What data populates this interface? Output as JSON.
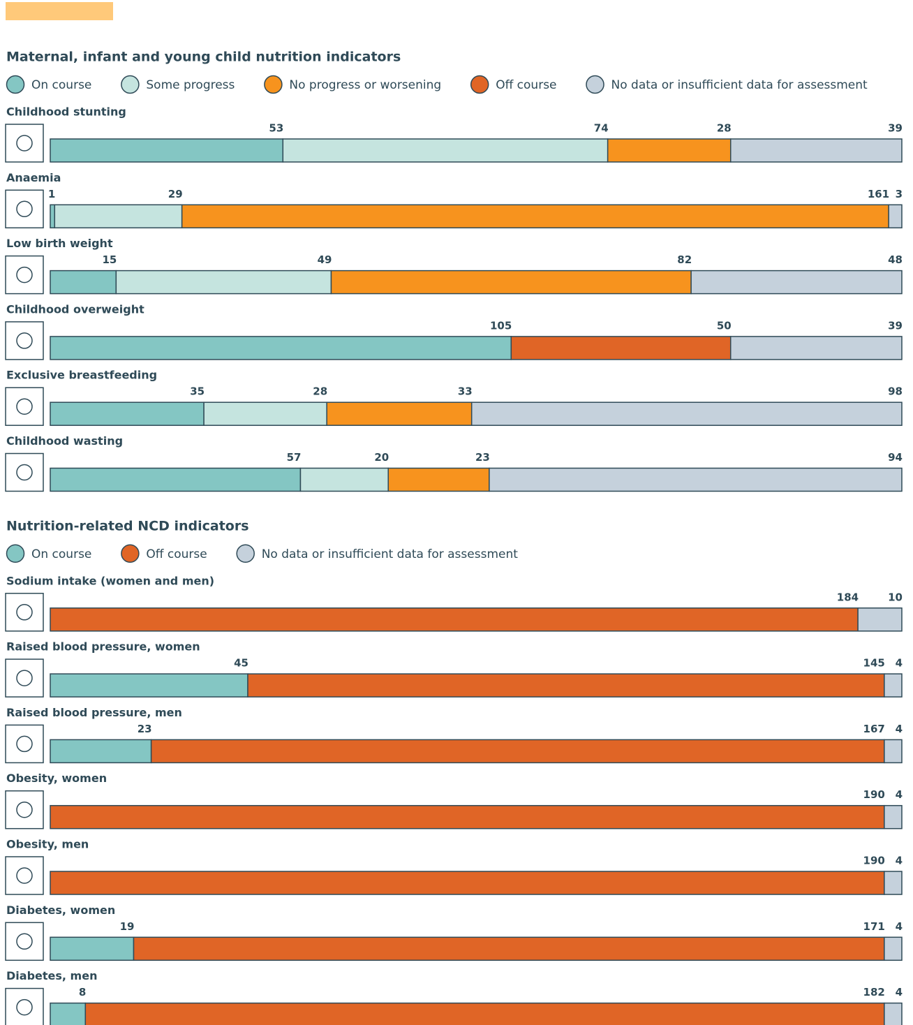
{
  "chart_data": [
    {
      "type": "stacked_bar",
      "title": "Maternal, infant and young child nutrition indicators",
      "categories": [
        "Childhood stunting",
        "Anaemia",
        "Low birth weight",
        "Childhood overweight",
        "Exclusive breastfeeding",
        "Childhood wasting"
      ],
      "xlim": [
        0,
        194
      ],
      "series": [
        {
          "name": "On course",
          "color": "#84c6c3",
          "values": [
            53,
            1,
            15,
            105,
            35,
            57
          ]
        },
        {
          "name": "Some progress",
          "color": "#c5e4df",
          "values": [
            74,
            29,
            49,
            null,
            28,
            20
          ]
        },
        {
          "name": "No progress or worsening",
          "color": "#f7931e",
          "values": [
            28,
            161,
            82,
            null,
            33,
            23
          ]
        },
        {
          "name": "Off course",
          "color": "#e06526",
          "values": [
            null,
            null,
            null,
            50,
            null,
            null
          ]
        },
        {
          "name": "No data or insufficient data for assessment",
          "color": "#c5d1dc",
          "values": [
            39,
            3,
            48,
            39,
            98,
            94
          ]
        }
      ]
    },
    {
      "type": "stacked_bar",
      "title": "Nutrition-related NCD indicators",
      "categories": [
        "Sodium intake (women and men)",
        "Raised blood pressure, women",
        "Raised blood pressure, men",
        "Obesity, women",
        "Obesity, men",
        "Diabetes, women",
        "Diabetes, men"
      ],
      "xlim": [
        0,
        194
      ],
      "series": [
        {
          "name": "On course",
          "color": "#84c6c3",
          "values": [
            null,
            45,
            23,
            null,
            null,
            19,
            8
          ]
        },
        {
          "name": "Off course",
          "color": "#e06526",
          "values": [
            184,
            145,
            167,
            190,
            190,
            171,
            182
          ]
        },
        {
          "name": "No data or insufficient data for assessment",
          "color": "#c5d1dc",
          "values": [
            10,
            4,
            4,
            4,
            4,
            4,
            4
          ]
        }
      ]
    }
  ]
}
